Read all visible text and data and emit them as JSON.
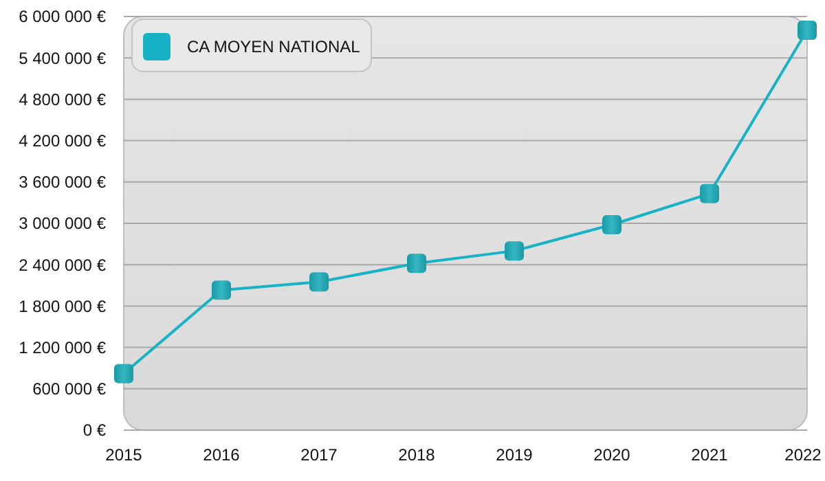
{
  "chart_data": {
    "type": "line",
    "x": [
      2015,
      2016,
      2017,
      2018,
      2019,
      2020,
      2021,
      2022
    ],
    "xlim": [
      2015,
      2022
    ],
    "xticks": [
      2015,
      2016,
      2017,
      2018,
      2019,
      2020,
      2021,
      2022
    ],
    "ylim": [
      0,
      6000000
    ],
    "yticks": [
      {
        "value": 0,
        "label": "0 €"
      },
      {
        "value": 600000,
        "label": "600 000 €"
      },
      {
        "value": 1200000,
        "label": "1 200 000 €"
      },
      {
        "value": 1800000,
        "label": "1 800 000 €"
      },
      {
        "value": 2400000,
        "label": "2 400 000 €"
      },
      {
        "value": 3000000,
        "label": "3 000 000 €"
      },
      {
        "value": 3600000,
        "label": "3 600 000 €"
      },
      {
        "value": 4200000,
        "label": "4 200 000 €"
      },
      {
        "value": 4800000,
        "label": "4 800 000 €"
      },
      {
        "value": 5400000,
        "label": "5 400 000 €"
      },
      {
        "value": 6000000,
        "label": "6 000 000 €"
      }
    ],
    "series": [
      {
        "name": "CA MOYEN NATIONAL",
        "color": "#17b2c5",
        "values": [
          820000,
          2030000,
          2150000,
          2420000,
          2600000,
          2980000,
          3430000,
          5800000
        ]
      }
    ],
    "grid": "y",
    "legend": "top left",
    "marker": "square",
    "line_style": "solid"
  }
}
